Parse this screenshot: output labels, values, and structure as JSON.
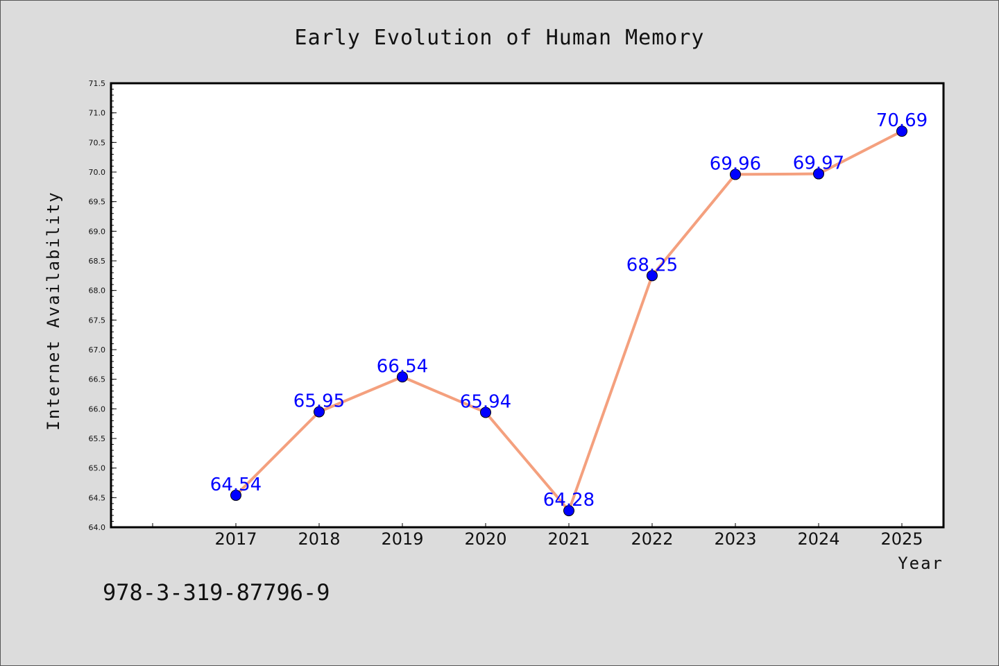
{
  "footnote": "978-3-319-87796-9",
  "chart_data": {
    "type": "line",
    "title": "Early Evolution of Human Memory",
    "xlabel": "Year",
    "ylabel": "Internet Availability",
    "categories": [
      "2017",
      "2018",
      "2019",
      "2020",
      "2021",
      "2022",
      "2023",
      "2024",
      "2025"
    ],
    "series": [
      {
        "values": [
          64.54,
          65.95,
          66.54,
          65.94,
          64.28,
          68.25,
          69.96,
          69.97,
          70.69
        ],
        "labels": [
          "64.54",
          "65.95",
          "66.54",
          "65.94",
          "64.28",
          "68.25",
          "69.96",
          "69.97",
          "70.69"
        ]
      }
    ],
    "ylim": [
      64.0,
      71.5
    ],
    "yticks": [
      "64.0",
      "64.5",
      "65.0",
      "65.5",
      "66.0",
      "66.5",
      "67.0",
      "67.5",
      "68.0",
      "68.5",
      "69.0",
      "69.5",
      "70.0",
      "70.5",
      "71.0",
      "71.5"
    ],
    "grid": false,
    "colors": {
      "line": "#f4a07e",
      "marker": "#0000ff",
      "label": "#0000ff",
      "plot_background": "#ffffff",
      "figure_background": "#dcdcdc"
    }
  }
}
